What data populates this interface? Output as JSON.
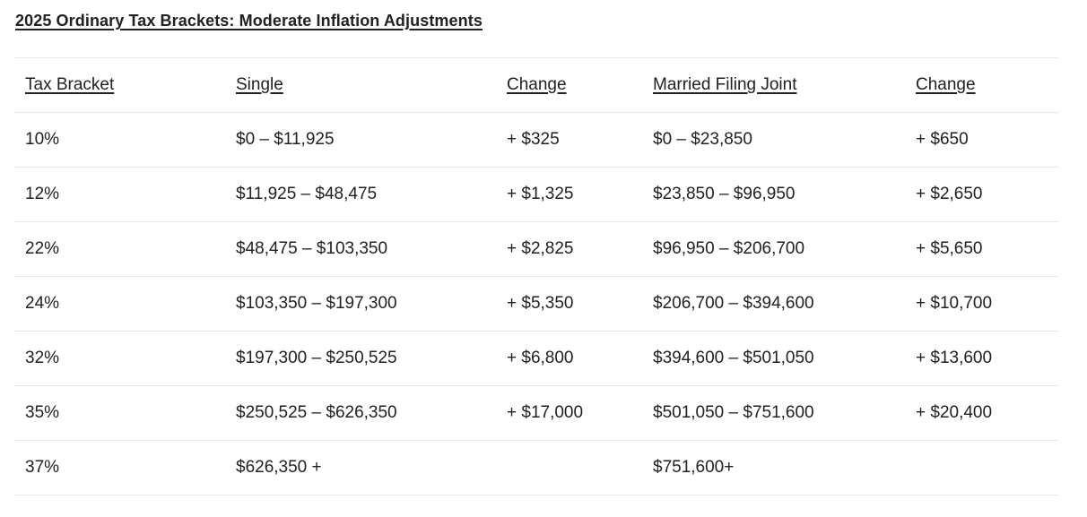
{
  "page": {
    "title": "2025 Ordinary Tax Brackets: Moderate Inflation Adjustments"
  },
  "table": {
    "columns": [
      {
        "label": "Tax Bracket"
      },
      {
        "label": "Single"
      },
      {
        "label": "Change"
      },
      {
        "label": "Married Filing Joint"
      },
      {
        "label": "Change"
      }
    ],
    "rows": [
      [
        "10%",
        "$0 – $11,925",
        "+ $325",
        "$0 – $23,850",
        "+ $650"
      ],
      [
        "12%",
        "$11,925 – $48,475",
        "+ $1,325",
        "$23,850 – $96,950",
        "+ $2,650"
      ],
      [
        "22%",
        "$48,475 – $103,350",
        "+ $2,825",
        "$96,950 – $206,700",
        "+ $5,650"
      ],
      [
        "24%",
        "$103,350 – $197,300",
        "+ $5,350",
        "$206,700 – $394,600",
        "+ $10,700"
      ],
      [
        "32%",
        "$197,300 – $250,525",
        "+ $6,800",
        "$394,600 – $501,050",
        "+ $13,600"
      ],
      [
        "35%",
        "$250,525 – $626,350",
        "+ $17,000",
        "$501,050 – $751,600",
        "+ $20,400"
      ],
      [
        "37%",
        "$626,350 +",
        "",
        "$751,600+",
        ""
      ]
    ]
  },
  "colors": {
    "text": "#202124",
    "row_border": "#e7e7e7",
    "background": "#ffffff"
  }
}
